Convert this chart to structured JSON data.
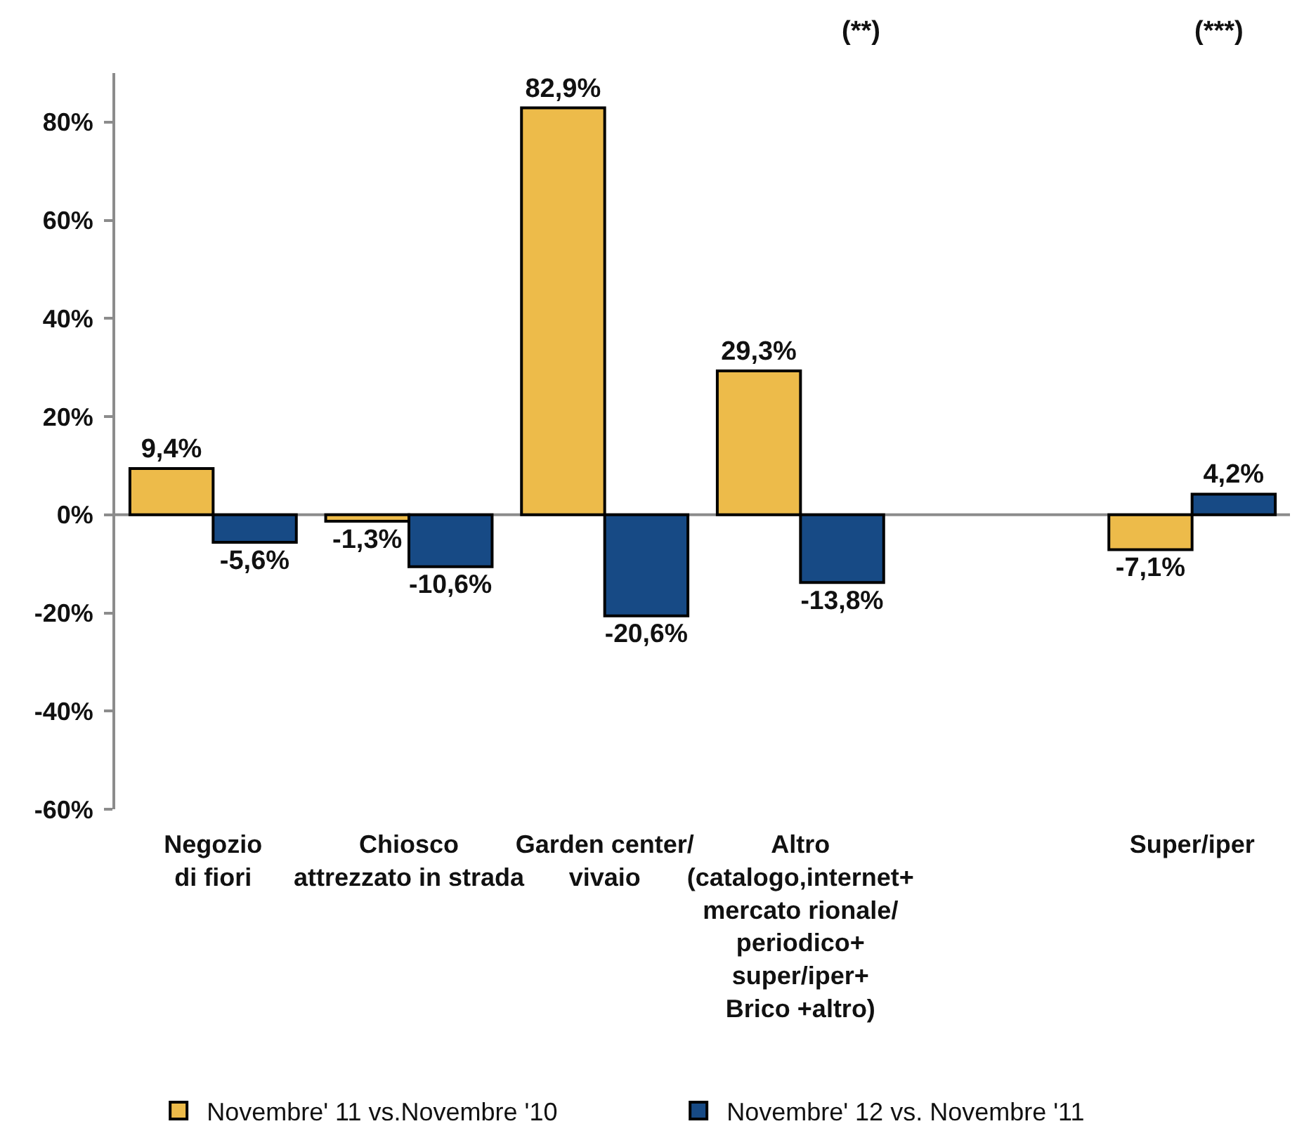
{
  "chart_data": {
    "type": "bar",
    "categories": [
      "Negozio\ndi fiori",
      "Chiosco\nattrezzato in strada",
      "Garden center/\nvivaio",
      "Altro\n(catalogo,internet+\nmercato rionale/\nperiodico+\nsuper/iper+\nBrico +altro)",
      null,
      "Super/iper"
    ],
    "series": [
      {
        "name": "Novembre' 11 vs.Novembre '10",
        "color": "#edbb4a",
        "values": [
          9.4,
          -1.3,
          82.9,
          29.3,
          null,
          -7.1
        ],
        "value_labels": [
          "9,4%",
          "-1,3%",
          "82,9%",
          "29,3%",
          null,
          "-7,1%"
        ]
      },
      {
        "name": "Novembre' 12 vs. Novembre '11",
        "color": "#174a85",
        "values": [
          -5.6,
          -10.6,
          -20.6,
          -13.8,
          null,
          4.2
        ],
        "value_labels": [
          "-5,6%",
          "-10,6%",
          "-20,6%",
          "-13,8%",
          null,
          "4,2%"
        ]
      }
    ],
    "ylim": [
      -60,
      90
    ],
    "yticks": [
      {
        "value": -60,
        "label": "-60%"
      },
      {
        "value": -40,
        "label": "-40%"
      },
      {
        "value": -20,
        "label": "-20%"
      },
      {
        "value": 0,
        "label": "0%"
      },
      {
        "value": 20,
        "label": "20%"
      },
      {
        "value": 40,
        "label": "40%"
      },
      {
        "value": 60,
        "label": "60%"
      },
      {
        "value": 80,
        "label": "80%"
      }
    ],
    "ref_lines": [
      {
        "axis": "y",
        "value": 0,
        "color": "#8c8c8c"
      }
    ],
    "annotations": [
      "(**)",
      "(***)"
    ],
    "grid": false,
    "legend": "bottom"
  }
}
